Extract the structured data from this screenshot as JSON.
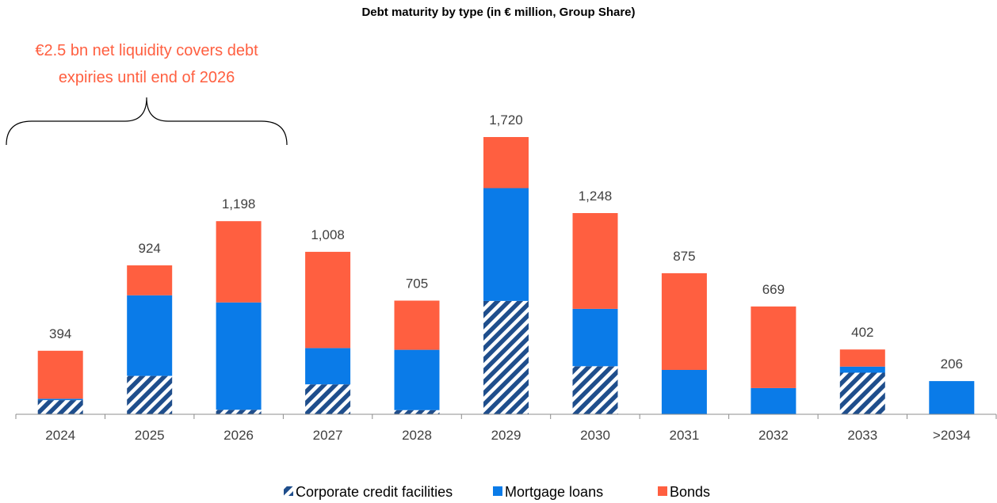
{
  "chart_data": {
    "type": "bar",
    "stacked": true,
    "title": "Debt maturity by type (in € million, Group Share)",
    "annotation": [
      "€2.5 bn net liquidity covers debt",
      "expiries until end of 2026"
    ],
    "annotation_color": "#FF5F40",
    "categories": [
      "2024",
      "2025",
      "2026",
      "2027",
      "2028",
      "2029",
      "2030",
      "2031",
      "2032",
      "2033",
      ">2034"
    ],
    "totals": [
      "394",
      "924",
      "1,198",
      "1,008",
      "705",
      "1,720",
      "1,248",
      "875",
      "669",
      "402",
      "206"
    ],
    "series": [
      {
        "name": "Corporate credit facilities",
        "color": "#1F4E8C",
        "pattern": "hatched",
        "values": [
          88,
          238,
          28,
          186,
          26,
          703,
          298,
          0,
          0,
          258,
          0
        ]
      },
      {
        "name": "Mortgage loans",
        "color": "#0A7BE8",
        "pattern": "solid",
        "values": [
          8,
          500,
          666,
          225,
          374,
          700,
          356,
          275,
          163,
          38,
          206
        ]
      },
      {
        "name": "Bonds",
        "color": "#FF5F40",
        "pattern": "solid",
        "values": [
          298,
          186,
          504,
          597,
          305,
          317,
          594,
          600,
          506,
          106,
          0
        ]
      }
    ],
    "ylim": [
      0,
      1900
    ],
    "grid": false,
    "legend_position": "bottom"
  }
}
